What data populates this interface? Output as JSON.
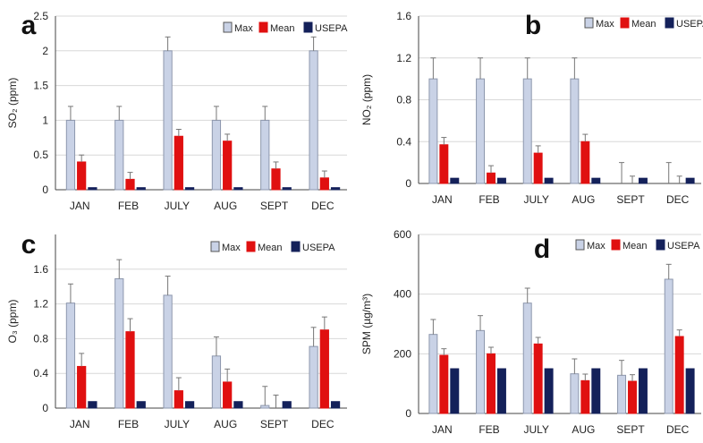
{
  "chart_data": [
    {
      "type": "bar",
      "panel_label": "a",
      "ylabel": "SO₂ (ppm)",
      "categories": [
        "JAN",
        "FEB",
        "JULY",
        "AUG",
        "SEPT",
        "DEC"
      ],
      "ylim": [
        0,
        2.5
      ],
      "yticks": [
        "0",
        "0.5",
        "1",
        "1.5",
        "2",
        "2.5"
      ],
      "grid": true,
      "legend_position": "top-right",
      "series": [
        {
          "name": "Max",
          "values": [
            1.0,
            1.0,
            2.0,
            1.0,
            1.0,
            2.0
          ],
          "errors": [
            0.2,
            0.2,
            0.2,
            0.2,
            0.2,
            0.2
          ]
        },
        {
          "name": "Mean",
          "values": [
            0.4,
            0.15,
            0.77,
            0.7,
            0.3,
            0.17
          ],
          "errors": [
            0.1,
            0.1,
            0.1,
            0.1,
            0.1,
            0.1
          ]
        },
        {
          "name": "USEPA",
          "values": [
            0.03,
            0.03,
            0.03,
            0.03,
            0.03,
            0.03
          ]
        }
      ]
    },
    {
      "type": "bar",
      "panel_label": "b",
      "ylabel": "NO₂ (ppm)",
      "categories": [
        "JAN",
        "FEB",
        "JULY",
        "AUG",
        "SEPT",
        "DEC"
      ],
      "ylim": [
        0,
        1.6
      ],
      "yticks": [
        "0",
        "0.4",
        "0.8",
        "1.2",
        "1.6"
      ],
      "grid": true,
      "legend_position": "top-right",
      "series": [
        {
          "name": "Max",
          "values": [
            1.0,
            1.0,
            1.0,
            1.0,
            0.0,
            0.0
          ],
          "errors": [
            0.2,
            0.2,
            0.2,
            0.2,
            0.2,
            0.2
          ]
        },
        {
          "name": "Mean",
          "values": [
            0.37,
            0.1,
            0.29,
            0.4,
            0.0,
            0.0
          ],
          "errors": [
            0.07,
            0.07,
            0.07,
            0.07,
            0.07,
            0.07
          ]
        },
        {
          "name": "USEPA",
          "values": [
            0.05,
            0.05,
            0.05,
            0.05,
            0.05,
            0.05
          ]
        }
      ]
    },
    {
      "type": "bar",
      "panel_label": "c",
      "ylabel": "O₃ (ppm)",
      "categories": [
        "JAN",
        "FEB",
        "JULY",
        "AUG",
        "SEPT",
        "DEC"
      ],
      "ylim": [
        0,
        2.0
      ],
      "yticks": [
        "0",
        "0.4",
        "0.8",
        "1.2",
        "1.6"
      ],
      "grid": true,
      "legend_position": "top-right",
      "series": [
        {
          "name": "Max",
          "values": [
            1.21,
            1.49,
            1.3,
            0.6,
            0.03,
            0.71
          ],
          "errors": [
            0.22,
            0.22,
            0.22,
            0.22,
            0.22,
            0.22
          ]
        },
        {
          "name": "Mean",
          "values": [
            0.48,
            0.88,
            0.2,
            0.3,
            0.0,
            0.9
          ],
          "errors": [
            0.15,
            0.15,
            0.15,
            0.15,
            0.15,
            0.15
          ]
        },
        {
          "name": "USEPA",
          "values": [
            0.075,
            0.075,
            0.075,
            0.075,
            0.075,
            0.075
          ]
        }
      ]
    },
    {
      "type": "bar",
      "panel_label": "d",
      "ylabel": "SPM (µg/m³)",
      "categories": [
        "JAN",
        "FEB",
        "JULY",
        "AUG",
        "SEPT",
        "DEC"
      ],
      "ylim": [
        0,
        600
      ],
      "yticks": [
        "0",
        "200",
        "400",
        "600"
      ],
      "grid": true,
      "legend_position": "top-right",
      "series": [
        {
          "name": "Max",
          "values": [
            265,
            278,
            370,
            133,
            128,
            450
          ],
          "errors": [
            50,
            50,
            50,
            50,
            50,
            50
          ]
        },
        {
          "name": "Mean",
          "values": [
            195,
            200,
            233,
            110,
            108,
            258
          ],
          "errors": [
            22,
            22,
            22,
            22,
            22,
            22
          ]
        },
        {
          "name": "USEPA",
          "values": [
            150,
            150,
            150,
            150,
            150,
            150
          ]
        }
      ]
    }
  ],
  "colors": {
    "max_fill": "#c9d2e6",
    "max_edge": "#8d97ad",
    "mean_fill": "#e01010",
    "usepa_fill": "#14215a",
    "error_bar": "#777777"
  }
}
